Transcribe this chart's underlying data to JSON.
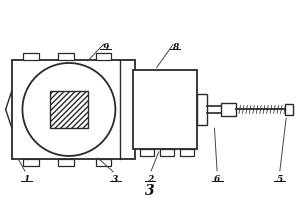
{
  "title": "3",
  "background_color": "#ffffff",
  "line_color": "#2a2a2a",
  "figsize": [
    3.0,
    2.0
  ],
  "dpi": 100,
  "labels": {
    "1": [
      0.07,
      0.175,
      0.08,
      0.22
    ],
    "3": [
      0.2,
      0.175,
      0.22,
      0.22
    ],
    "2": [
      0.47,
      0.175,
      0.5,
      0.22
    ],
    "6": [
      0.71,
      0.175,
      0.73,
      0.22
    ],
    "5": [
      0.9,
      0.175,
      0.91,
      0.22
    ],
    "9": [
      0.25,
      0.84,
      0.27,
      0.88
    ],
    "8": [
      0.44,
      0.84,
      0.45,
      0.88
    ]
  }
}
